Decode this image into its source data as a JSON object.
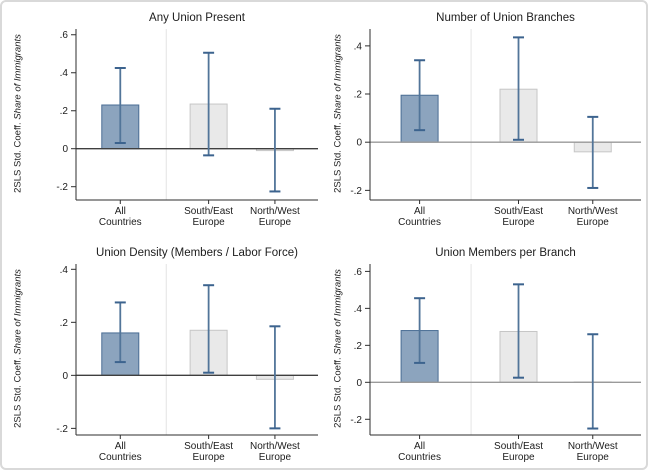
{
  "figure": {
    "background": "#ffffff",
    "border_color": "#d9d9d9"
  },
  "colors": {
    "bar_blue_fill": "#8ca4be",
    "bar_blue_border": "#4a6d94",
    "bar_gray_fill": "#e9e9e9",
    "bar_gray_border": "#c6c6c6",
    "error_bar_line": "#527599",
    "error_bar_cap": "#3c638e",
    "axis": "#2e2e2e",
    "zero_line_left_col": "#3f3f3f",
    "zero_line_right_col": "#9a9a9a",
    "separator": "#e4e4e4",
    "text": "#1c1c1c"
  },
  "ylabel": {
    "prefix": "2SLS Std. Coeff. ",
    "italic": "Share of Immigrants"
  },
  "bar_style_by_category": [
    "blue",
    "gray",
    "gray"
  ],
  "chart_data": [
    {
      "type": "bar",
      "title": "Any Union Present",
      "categories": [
        "All Countries",
        "South/East Europe",
        "North/West Europe"
      ],
      "values": [
        0.23,
        0.235,
        -0.01
      ],
      "ci_low": [
        0.03,
        -0.035,
        -0.225
      ],
      "ci_high": [
        0.425,
        0.505,
        0.21
      ],
      "yticks": [
        -0.2,
        0,
        0.2,
        0.4,
        0.6
      ],
      "ytick_labels": [
        "-.2",
        "0",
        ".2",
        ".4",
        ".6"
      ],
      "ylim": [
        -0.27,
        0.63
      ],
      "xlabel": "",
      "ylabel": "2SLS Std. Coeff. Share of Immigrants",
      "legend": "none",
      "grid": false
    },
    {
      "type": "bar",
      "title": "Number of Union Branches",
      "categories": [
        "All Countries",
        "South/East Europe",
        "North/West Europe"
      ],
      "values": [
        0.195,
        0.22,
        -0.04
      ],
      "ci_low": [
        0.05,
        0.01,
        -0.19
      ],
      "ci_high": [
        0.34,
        0.435,
        0.105
      ],
      "yticks": [
        -0.2,
        0,
        0.2,
        0.4
      ],
      "ytick_labels": [
        "-.2",
        "0",
        ".2",
        ".4"
      ],
      "ylim": [
        -0.24,
        0.47
      ],
      "xlabel": "",
      "ylabel": "2SLS Std. Coeff. Share of Immigrants",
      "legend": "none",
      "grid": false
    },
    {
      "type": "bar",
      "title": "Union Density (Members / Labor Force)",
      "categories": [
        "All Countries",
        "South/East Europe",
        "North/West Europe"
      ],
      "values": [
        0.16,
        0.17,
        -0.015
      ],
      "ci_low": [
        0.05,
        0.01,
        -0.2
      ],
      "ci_high": [
        0.275,
        0.34,
        0.185
      ],
      "yticks": [
        -0.2,
        0,
        0.2,
        0.4
      ],
      "ytick_labels": [
        "-.2",
        "0",
        ".2",
        ".4"
      ],
      "ylim": [
        -0.225,
        0.42
      ],
      "xlabel": "",
      "ylabel": "2SLS Std. Coeff. Share of Immigrants",
      "legend": "none",
      "grid": false
    },
    {
      "type": "bar",
      "title": "Union Members per Branch",
      "categories": [
        "All Countries",
        "South/East Europe",
        "North/West Europe"
      ],
      "values": [
        0.28,
        0.275,
        0.002
      ],
      "ci_low": [
        0.105,
        0.025,
        -0.25
      ],
      "ci_high": [
        0.455,
        0.53,
        0.26
      ],
      "yticks": [
        -0.2,
        0,
        0.2,
        0.4,
        0.6
      ],
      "ytick_labels": [
        "-.2",
        "0",
        ".2",
        ".4",
        ".6"
      ],
      "ylim": [
        -0.285,
        0.64
      ],
      "xlabel": "",
      "ylabel": "2SLS Std. Coeff. Share of Immigrants",
      "legend": "none",
      "grid": false
    }
  ]
}
